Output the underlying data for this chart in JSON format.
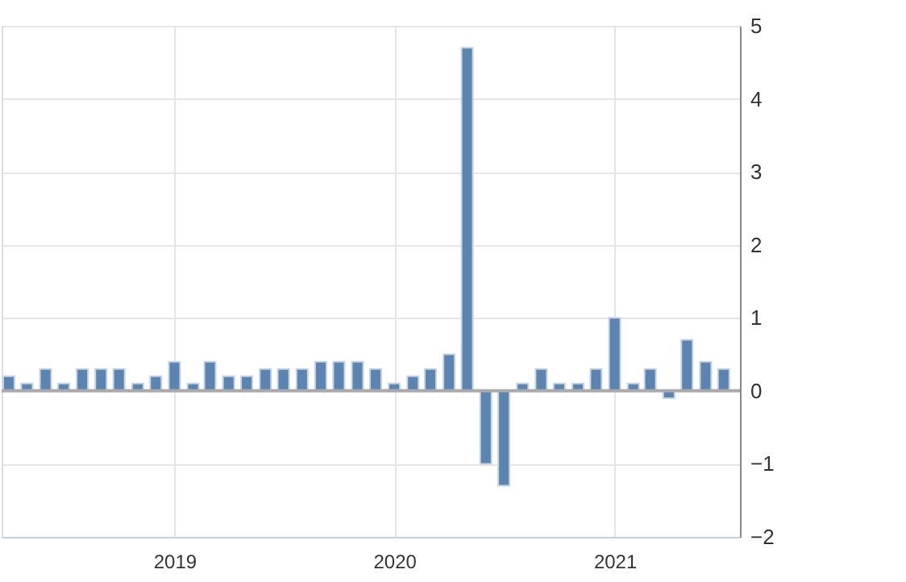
{
  "chart_data": {
    "type": "bar",
    "x": [
      "2018-04",
      "2018-05",
      "2018-06",
      "2018-07",
      "2018-08",
      "2018-09",
      "2018-10",
      "2018-11",
      "2018-12",
      "2019-01",
      "2019-02",
      "2019-03",
      "2019-04",
      "2019-05",
      "2019-06",
      "2019-07",
      "2019-08",
      "2019-09",
      "2019-10",
      "2019-11",
      "2019-12",
      "2020-01",
      "2020-02",
      "2020-03",
      "2020-04",
      "2020-05",
      "2020-06",
      "2020-07",
      "2020-08",
      "2020-09",
      "2020-10",
      "2020-11",
      "2020-12",
      "2021-01",
      "2021-02",
      "2021-03",
      "2021-04",
      "2021-05",
      "2021-06",
      "2021-07"
    ],
    "values": [
      0.2,
      0.1,
      0.3,
      0.1,
      0.3,
      0.3,
      0.3,
      0.1,
      0.2,
      0.4,
      0.1,
      0.4,
      0.2,
      0.2,
      0.3,
      0.3,
      0.3,
      0.4,
      0.4,
      0.4,
      0.3,
      0.1,
      0.2,
      0.3,
      0.5,
      4.7,
      -1.0,
      -1.3,
      0.1,
      0.3,
      0.1,
      0.1,
      0.3,
      1.0,
      0.1,
      0.3,
      -0.1,
      0.7,
      0.4,
      0.3
    ],
    "color": "#5b84b1",
    "xlim": [
      "2018-03-20",
      "2021-07-28"
    ],
    "xticks": [
      "2019",
      "2020",
      "2021"
    ],
    "ylim": [
      -2,
      5
    ],
    "yticks": [
      -2,
      -1,
      0,
      1,
      2,
      3,
      4,
      5
    ],
    "grid": true
  }
}
